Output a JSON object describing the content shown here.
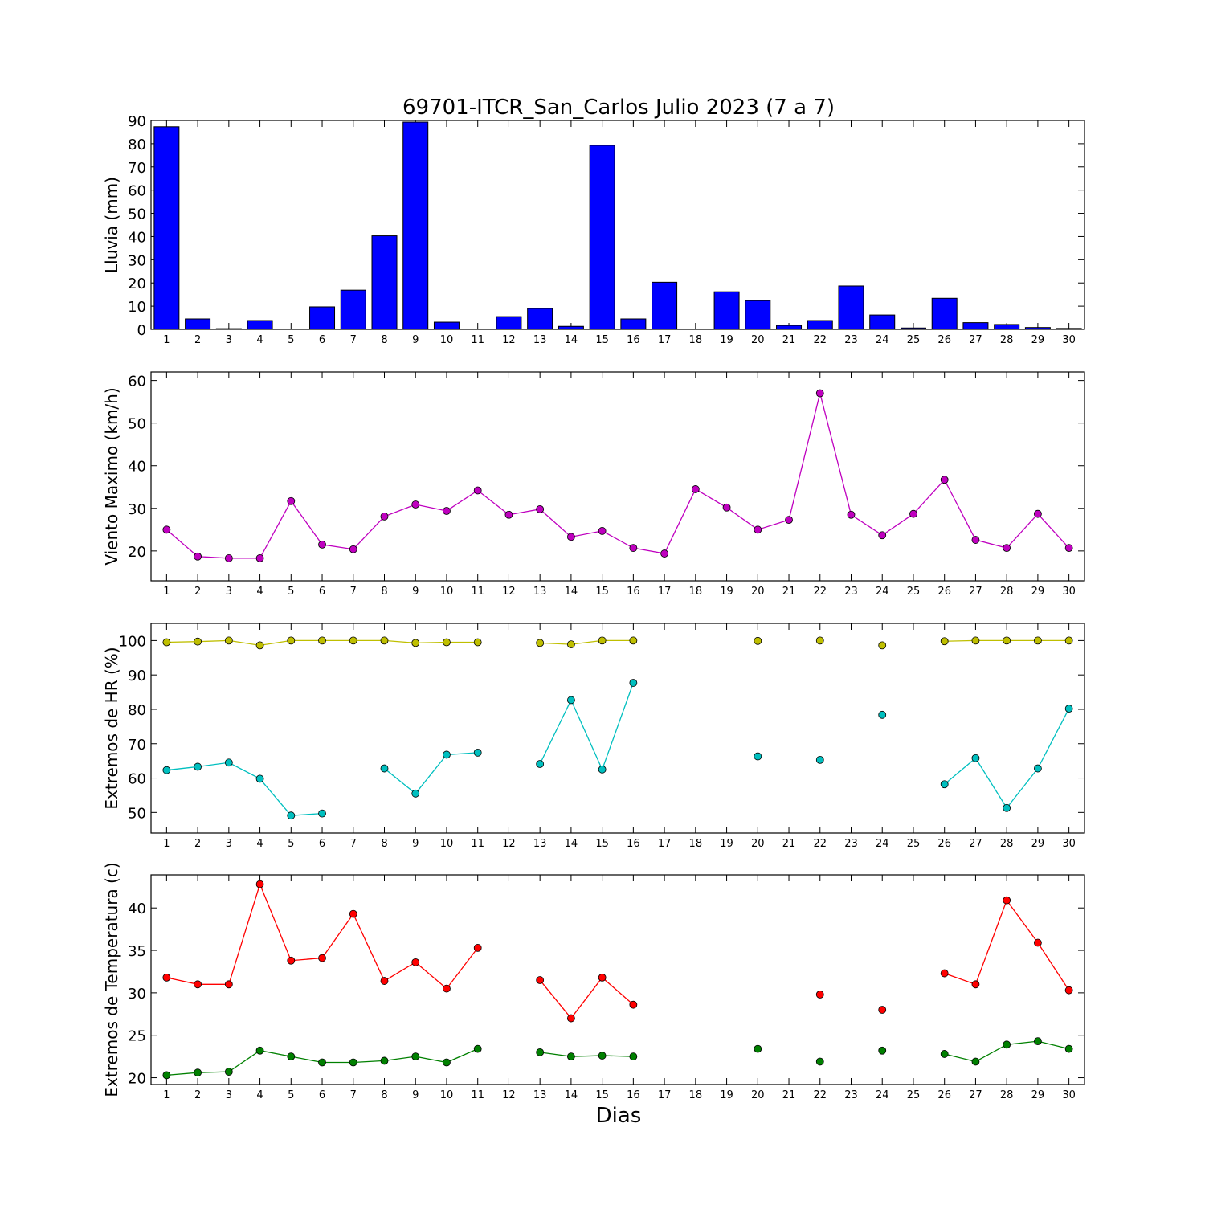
{
  "chart_data": {
    "title": "69701-ITCR_San_Carlos Julio 2023  (7 a 7)",
    "xlabel": "Dias",
    "days": [
      1,
      2,
      3,
      4,
      5,
      6,
      7,
      8,
      9,
      10,
      11,
      12,
      13,
      14,
      15,
      16,
      17,
      18,
      19,
      20,
      21,
      22,
      23,
      24,
      25,
      26,
      27,
      28,
      29,
      30
    ],
    "panels": [
      {
        "type": "bar",
        "ylabel": "Lluvia (mm)",
        "ylim": [
          0,
          90
        ],
        "yticks": [
          0,
          10,
          20,
          30,
          40,
          50,
          60,
          70,
          80,
          90
        ],
        "series": [
          {
            "color": "#0000ff",
            "values": [
              87.3,
              4.5,
              0.3,
              3.8,
              0,
              9.7,
              16.9,
              40.3,
              89.3,
              3.1,
              0,
              5.5,
              9.0,
              1.3,
              79.3,
              4.5,
              20.3,
              0,
              16.2,
              12.4,
              1.7,
              3.8,
              18.7,
              6.2,
              0.6,
              13.4,
              2.9,
              2.1,
              0.8,
              0.4
            ]
          }
        ]
      },
      {
        "type": "line",
        "ylabel": "Viento Maximo (km/h)",
        "ylim": [
          13,
          62
        ],
        "yticks": [
          20,
          30,
          40,
          50,
          60
        ],
        "series": [
          {
            "color": "#bf00bf",
            "values": [
              25.0,
              18.7,
              18.3,
              18.3,
              31.7,
              21.5,
              20.4,
              28.1,
              30.9,
              29.4,
              34.2,
              28.5,
              29.8,
              23.3,
              24.7,
              20.7,
              19.4,
              34.5,
              30.2,
              25.0,
              27.3,
              57.0,
              28.5,
              23.7,
              28.7,
              36.7,
              22.6,
              20.7,
              28.7,
              20.7
            ]
          }
        ]
      },
      {
        "type": "line",
        "ylabel": "Extremos de HR (%)",
        "ylim": [
          44,
          105
        ],
        "yticks": [
          50,
          60,
          70,
          80,
          90,
          100
        ],
        "series": [
          {
            "color": "#bfbf00",
            "values": [
              99.5,
              99.7,
              100,
              98.6,
              100,
              100,
              100,
              100,
              99.3,
              99.5,
              99.5,
              null,
              99.3,
              98.9,
              100,
              100,
              null,
              null,
              null,
              99.9,
              null,
              100,
              null,
              98.6,
              null,
              99.8,
              100,
              100,
              100,
              100
            ]
          },
          {
            "color": "#00bfbf",
            "values": [
              62.3,
              63.3,
              64.5,
              59.8,
              49.1,
              49.7,
              null,
              62.8,
              55.5,
              66.8,
              67.4,
              null,
              64.1,
              82.7,
              62.5,
              87.7,
              null,
              null,
              null,
              66.3,
              null,
              65.3,
              null,
              78.4,
              null,
              58.2,
              65.8,
              51.3,
              62.8,
              80.2
            ]
          }
        ]
      },
      {
        "type": "line",
        "ylabel": "Extremos de Temperatura (c)",
        "ylim": [
          19.2,
          43.9
        ],
        "yticks": [
          20,
          25,
          30,
          35,
          40
        ],
        "series": [
          {
            "color": "#ff0000",
            "values": [
              31.8,
              31.0,
              31.0,
              42.8,
              33.8,
              34.1,
              39.3,
              31.4,
              33.6,
              30.5,
              35.3,
              null,
              31.5,
              27.0,
              31.8,
              28.6,
              null,
              null,
              null,
              null,
              null,
              29.8,
              null,
              28.0,
              null,
              32.3,
              31.0,
              40.9,
              35.9,
              30.3
            ]
          },
          {
            "color": "#008000",
            "values": [
              20.3,
              20.6,
              20.7,
              23.2,
              22.5,
              21.8,
              21.8,
              22.0,
              22.5,
              21.8,
              23.4,
              null,
              23.0,
              22.5,
              22.6,
              22.5,
              null,
              null,
              null,
              23.4,
              null,
              21.9,
              null,
              23.2,
              null,
              22.8,
              21.9,
              23.9,
              24.3,
              23.4
            ]
          }
        ]
      }
    ]
  }
}
